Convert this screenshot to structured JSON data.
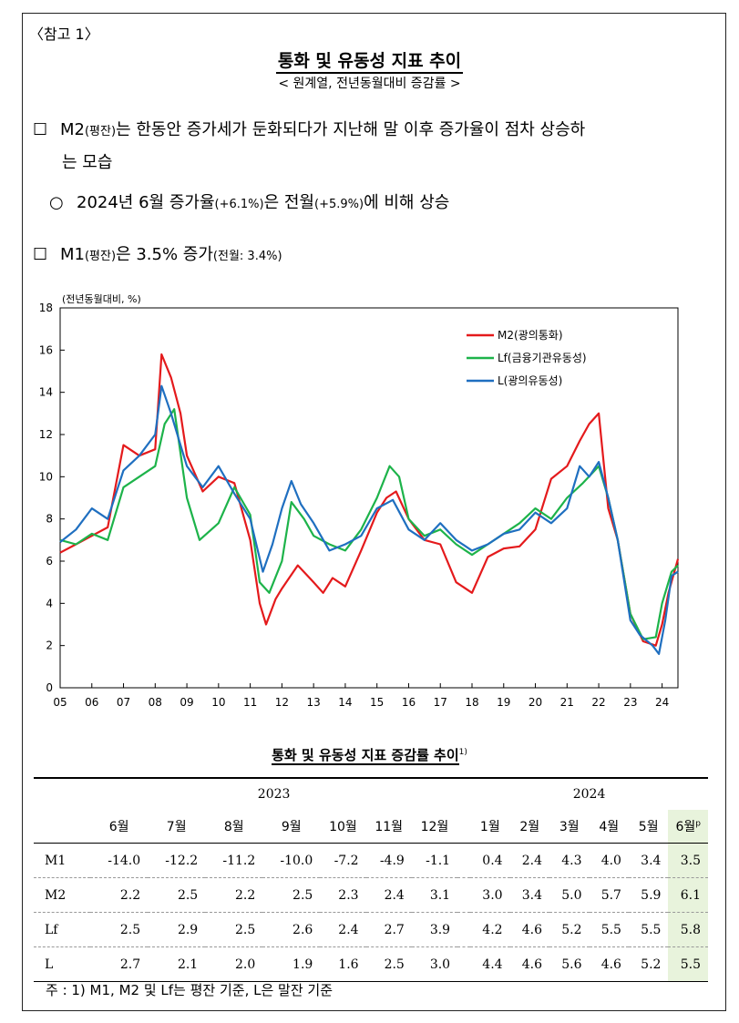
{
  "ref_tag": "〈참고 1〉",
  "title": "통화 및 유동성 지표 추이",
  "subtitle": "< 원계열, 전년동월대비 증감률 >",
  "bullet1": {
    "sym": "☐",
    "main_a": "M2",
    "main_b": "(평잔)",
    "main_c": "는 한동안 증가세가 둔화되다가 지난해 말 이후 증가율이 점차 상승하",
    "cont": "는 모습"
  },
  "bullet2": {
    "sym": "○",
    "a": "2024년 6월 증가율",
    "b": "(+6.1%)",
    "c": "은 전월",
    "d": "(+5.9%)",
    "e": "에 비해 상승"
  },
  "bullet3": {
    "sym": "☐",
    "a": "M1",
    "b": "(평잔)",
    "c": "은 3.5% 증가",
    "d": "(전월: 3.4%)"
  },
  "chart_data": {
    "type": "line",
    "unit_label": "(전년동월대비, %)",
    "ylim": [
      0,
      18
    ],
    "yticks": [
      "0",
      "2",
      "4",
      "6",
      "8",
      "10",
      "12",
      "14",
      "16",
      "18"
    ],
    "xticks": [
      "05",
      "06",
      "07",
      "08",
      "09",
      "10",
      "11",
      "12",
      "13",
      "14",
      "15",
      "16",
      "17",
      "18",
      "19",
      "20",
      "21",
      "22",
      "23",
      "24"
    ],
    "x_range": [
      2005.0,
      2024.5
    ],
    "legend_position": "top-right",
    "series": [
      {
        "name": "M2(광의통화)",
        "color": "#e41a1c",
        "x": [
          2005.0,
          2005.5,
          2006.0,
          2006.5,
          2007.0,
          2007.5,
          2008.0,
          2008.2,
          2008.5,
          2008.8,
          2009.0,
          2009.5,
          2010.0,
          2010.5,
          2011.0,
          2011.3,
          2011.5,
          2011.8,
          2012.0,
          2012.5,
          2013.0,
          2013.3,
          2013.6,
          2014.0,
          2014.5,
          2015.0,
          2015.3,
          2015.6,
          2016.0,
          2016.5,
          2017.0,
          2017.5,
          2018.0,
          2018.5,
          2019.0,
          2019.5,
          2020.0,
          2020.5,
          2021.0,
          2021.4,
          2021.7,
          2022.0,
          2022.3,
          2022.6,
          2023.0,
          2023.4,
          2023.8,
          2024.0,
          2024.2,
          2024.5
        ],
        "y": [
          6.4,
          6.8,
          7.2,
          7.6,
          11.5,
          11.0,
          11.3,
          15.8,
          14.7,
          13.0,
          11.0,
          9.3,
          10.0,
          9.7,
          7.0,
          4.0,
          3.0,
          4.2,
          4.7,
          5.8,
          5.0,
          4.5,
          5.2,
          4.8,
          6.5,
          8.3,
          9.0,
          9.3,
          8.0,
          7.0,
          6.8,
          5.0,
          4.5,
          6.2,
          6.6,
          6.7,
          7.5,
          9.9,
          10.5,
          11.7,
          12.5,
          13.0,
          8.5,
          7.0,
          3.5,
          2.2,
          2.0,
          3.0,
          4.5,
          6.1
        ]
      },
      {
        "name": "Lf(금융기관유동성)",
        "color": "#1db34a",
        "x": [
          2005.0,
          2005.5,
          2006.0,
          2006.5,
          2007.0,
          2007.5,
          2008.0,
          2008.3,
          2008.6,
          2009.0,
          2009.4,
          2010.0,
          2010.5,
          2011.0,
          2011.3,
          2011.6,
          2012.0,
          2012.3,
          2012.7,
          2013.0,
          2013.5,
          2014.0,
          2014.5,
          2015.0,
          2015.4,
          2015.7,
          2016.0,
          2016.5,
          2017.0,
          2017.5,
          2018.0,
          2018.5,
          2019.0,
          2019.5,
          2020.0,
          2020.5,
          2021.0,
          2021.5,
          2022.0,
          2022.3,
          2022.6,
          2023.0,
          2023.4,
          2023.8,
          2024.0,
          2024.3,
          2024.5
        ],
        "y": [
          7.0,
          6.8,
          7.3,
          7.0,
          9.5,
          10.0,
          10.5,
          12.5,
          13.2,
          9.0,
          7.0,
          7.8,
          9.5,
          8.2,
          5.0,
          4.5,
          6.0,
          8.8,
          8.0,
          7.2,
          6.8,
          6.5,
          7.5,
          9.0,
          10.5,
          10.0,
          8.0,
          7.2,
          7.5,
          6.8,
          6.3,
          6.8,
          7.3,
          7.8,
          8.5,
          8.0,
          9.0,
          9.7,
          10.5,
          9.0,
          7.0,
          3.5,
          2.3,
          2.4,
          4.0,
          5.5,
          5.8
        ]
      },
      {
        "name": "L(광의유동성)",
        "color": "#1f6fc0",
        "x": [
          2005.0,
          2005.5,
          2006.0,
          2006.5,
          2007.0,
          2007.5,
          2008.0,
          2008.2,
          2008.5,
          2008.8,
          2009.0,
          2009.5,
          2010.0,
          2010.5,
          2011.0,
          2011.4,
          2011.7,
          2012.0,
          2012.3,
          2012.6,
          2013.0,
          2013.5,
          2014.0,
          2014.5,
          2015.0,
          2015.5,
          2016.0,
          2016.5,
          2017.0,
          2017.5,
          2018.0,
          2018.5,
          2019.0,
          2019.5,
          2020.0,
          2020.5,
          2021.0,
          2021.4,
          2021.7,
          2022.0,
          2022.3,
          2022.6,
          2023.0,
          2023.3,
          2023.7,
          2023.9,
          2024.1,
          2024.3,
          2024.5
        ],
        "y": [
          6.9,
          7.5,
          8.5,
          8.0,
          10.3,
          11.0,
          12.0,
          14.3,
          13.0,
          11.5,
          10.5,
          9.5,
          10.5,
          9.2,
          8.0,
          5.5,
          6.8,
          8.5,
          9.8,
          8.7,
          7.8,
          6.5,
          6.8,
          7.2,
          8.5,
          8.9,
          7.5,
          7.0,
          7.8,
          7.0,
          6.5,
          6.8,
          7.3,
          7.5,
          8.3,
          7.8,
          8.5,
          10.5,
          10.0,
          10.7,
          9.0,
          7.0,
          3.2,
          2.5,
          2.0,
          1.6,
          3.2,
          5.3,
          5.5
        ]
      }
    ]
  },
  "table": {
    "title": "통화 및 유동성 지표 증감률 추이",
    "title_note": "1)",
    "years": [
      "2023",
      "2024"
    ],
    "months": [
      "6월",
      "7월",
      "8월",
      "9월",
      "10월",
      "11월",
      "12월",
      "1월",
      "2월",
      "3월",
      "4월",
      "5월",
      "6월"
    ],
    "last_month_sup": "p",
    "rows": [
      {
        "label": "M1",
        "values": [
          "-14.0",
          "-12.2",
          "-11.2",
          "-10.0",
          "-7.2",
          "-4.9",
          "-1.1",
          "0.4",
          "2.4",
          "4.3",
          "4.0",
          "3.4",
          "3.5"
        ]
      },
      {
        "label": "M2",
        "values": [
          "2.2",
          "2.5",
          "2.2",
          "2.5",
          "2.3",
          "2.4",
          "3.1",
          "3.0",
          "3.4",
          "5.0",
          "5.7",
          "5.9",
          "6.1"
        ]
      },
      {
        "label": "Lf",
        "values": [
          "2.5",
          "2.9",
          "2.5",
          "2.6",
          "2.4",
          "2.7",
          "3.9",
          "4.2",
          "4.6",
          "5.2",
          "5.5",
          "5.5",
          "5.8"
        ]
      },
      {
        "label": "L",
        "values": [
          "2.7",
          "2.1",
          "2.0",
          "1.9",
          "1.6",
          "2.5",
          "3.0",
          "4.4",
          "4.6",
          "5.6",
          "4.6",
          "5.2",
          "5.5"
        ]
      }
    ],
    "note": "주 : 1) M1, M2 및 Lf는 평잔 기준, L은 말잔 기준"
  }
}
